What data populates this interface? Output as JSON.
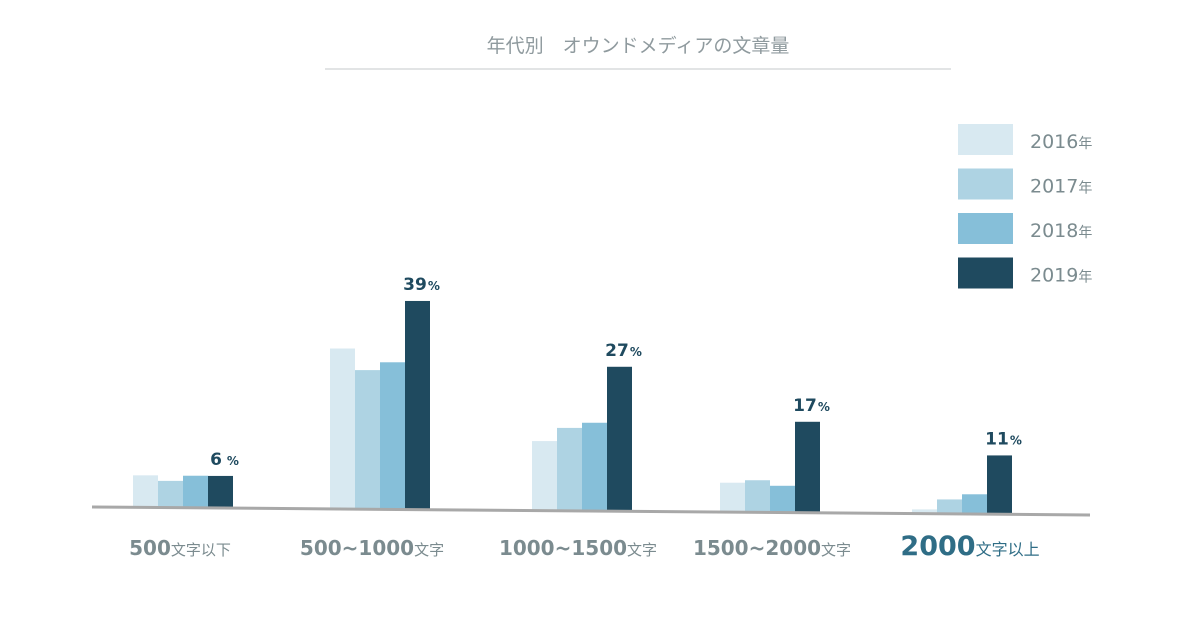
{
  "chart_data": {
    "type": "bar",
    "title": "年代別　オウンドメディアの文章量",
    "categories": [
      "500文字以下",
      "500~1000文字",
      "1000~1500文字",
      "1500~2000文字",
      "2000文字以上"
    ],
    "series": [
      {
        "name": "2016年",
        "color": "#d8e9f1",
        "values": [
          6,
          30,
          13,
          5.5,
          0.8
        ]
      },
      {
        "name": "2017年",
        "color": "#aed3e3",
        "values": [
          5,
          26,
          15.5,
          6,
          2.7
        ]
      },
      {
        "name": "2018年",
        "color": "#86bfd9",
        "values": [
          6,
          27.5,
          16.5,
          5,
          3.7
        ]
      },
      {
        "name": "2019年",
        "color": "#1f4a5f",
        "values": [
          6,
          39,
          27,
          17,
          11
        ]
      }
    ],
    "data_labels": [
      "6",
      "39",
      "27",
      "17",
      "11"
    ],
    "percent_unit": "%",
    "ylim": [
      0,
      45
    ],
    "legend_position": "top-right",
    "grid": false,
    "colors": {
      "axis": "#a8a8a8",
      "category_text": "#7b8b8f",
      "category_highlight": "#2f6d86",
      "label_text": "#1f4a5f",
      "title_text": "#8f9a9e",
      "title_rule": "#c4c9cb",
      "legend_text": "#7b8b8f"
    }
  }
}
